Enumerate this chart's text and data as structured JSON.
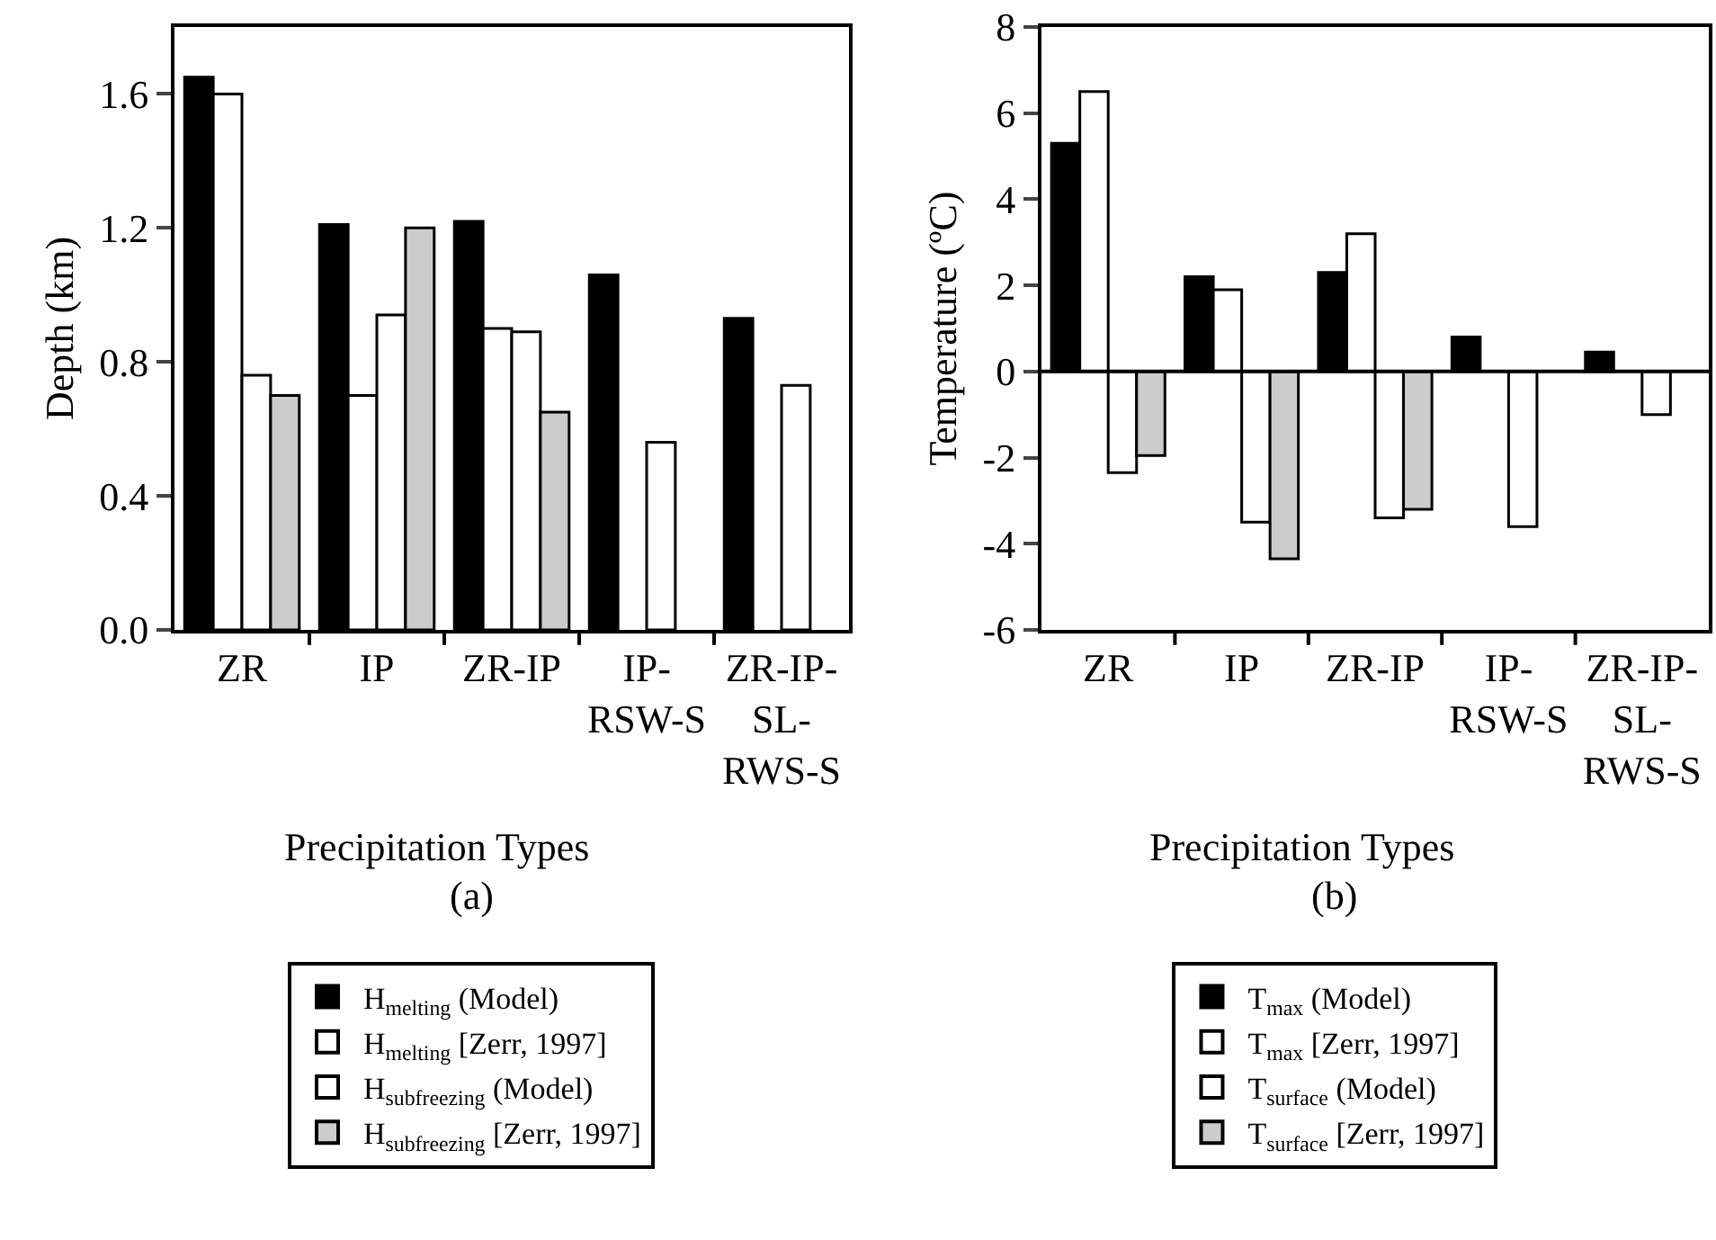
{
  "chart_data": [
    {
      "type": "bar",
      "title": "(a)",
      "xlabel": "Precipitation Types",
      "ylabel": "Depth (km)",
      "categories": [
        "ZR",
        "IP",
        "ZR-IP",
        "IP-RSW-S",
        "ZR-IP-SL-RWS-S"
      ],
      "series": [
        {
          "name": "H$_{melting}$ (Model)",
          "color": "#000000",
          "values": [
            1.65,
            1.21,
            1.22,
            1.06,
            0.93
          ]
        },
        {
          "name": "H$_{melting}$ [Zerr, 1997]",
          "color": "#ffffff",
          "values": [
            1.6,
            0.7,
            0.9,
            null,
            null
          ]
        },
        {
          "name": "H$_{subfreezing}$ (Model)",
          "color": "#ffffff",
          "values": [
            0.76,
            0.94,
            0.89,
            0.56,
            0.73
          ]
        },
        {
          "name": "H$_{subfreezing}$ [Zerr, 1997]",
          "color": "#cccccc",
          "values": [
            0.7,
            1.2,
            0.65,
            null,
            null
          ]
        }
      ],
      "ylim": [
        0,
        1.8
      ],
      "yticks": [
        {
          "value": 0,
          "label": "0.0"
        },
        0.4,
        0.8,
        1.2,
        1.6
      ],
      "grid": false,
      "legend": "bottom"
    },
    {
      "type": "bar",
      "title": "(b)",
      "xlabel": "Precipitation Types",
      "ylabel": "Temperature (ºC)",
      "categories": [
        "ZR",
        "IP",
        "ZR-IP",
        "IP-RSW-S",
        "ZR-IP-SL-RWS-S"
      ],
      "series": [
        {
          "name": "T$_{max}$ (Model)",
          "color": "#000000",
          "values": [
            5.3,
            2.2,
            2.3,
            0.8,
            0.45
          ]
        },
        {
          "name": "T$_{max}$ [Zerr, 1997]",
          "color": "#ffffff",
          "values": [
            6.5,
            1.9,
            3.2,
            null,
            null
          ]
        },
        {
          "name": "T$_{surface}$ (Model)",
          "color": "#ffffff",
          "values": [
            -2.35,
            -3.5,
            -3.4,
            -3.6,
            -1.0
          ]
        },
        {
          "name": "T$_{surface}$ [Zerr, 1997]",
          "color": "#cccccc",
          "values": [
            -1.95,
            -4.35,
            -3.2,
            null,
            null
          ]
        }
      ],
      "ylim": [
        -6,
        8
      ],
      "yticks": [
        -6,
        -4,
        -2,
        0,
        2,
        4,
        6,
        8
      ],
      "ref_lines": [
        {
          "axis": "y",
          "value": 0
        }
      ],
      "grid": false,
      "legend": "bottom"
    }
  ]
}
